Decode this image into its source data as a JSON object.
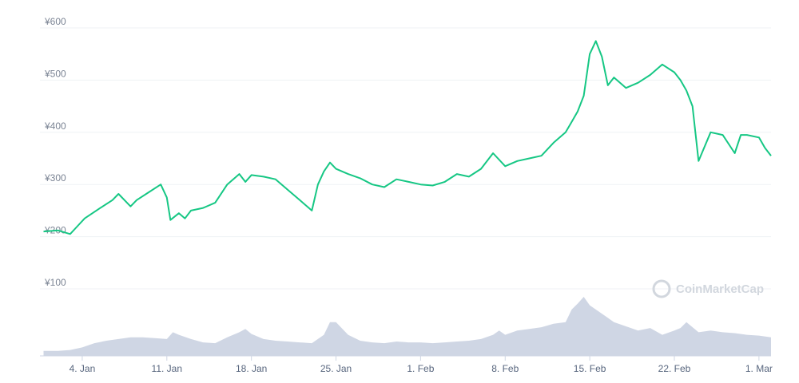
{
  "chart_data": {
    "type": "line",
    "title": "",
    "xlabel": "",
    "ylabel": "",
    "currency": "¥",
    "ylim": [
      0,
      600
    ],
    "y_ticks": [
      "¥600",
      "¥500",
      "¥400",
      "¥300",
      "¥200",
      "¥100"
    ],
    "y_tick_values": [
      600,
      500,
      400,
      300,
      200,
      100
    ],
    "x_ticks": [
      "4. Jan",
      "11. Jan",
      "18. Jan",
      "25. Jan",
      "1. Feb",
      "8. Feb",
      "15. Feb",
      "22. Feb",
      "1. Mar"
    ],
    "x_tick_days": [
      4,
      11,
      18,
      25,
      32,
      39,
      46,
      53,
      60
    ],
    "x_range_days": [
      0.5,
      61
    ],
    "grid": true,
    "watermark": "CoinMarketCap",
    "colors": {
      "price_line": "#16c784",
      "volume_area": "#cfd6e4",
      "grid": "#eff2f5"
    },
    "series": [
      {
        "kind": "price",
        "x_days": [
          0.8,
          2,
          3,
          3.6,
          4.2,
          5.5,
          6.5,
          7,
          8,
          8.5,
          9.5,
          10.5,
          11,
          11.3,
          12,
          12.5,
          13,
          14,
          15,
          16,
          17,
          17.5,
          18,
          19,
          20,
          21,
          22,
          23,
          23.5,
          24,
          24.5,
          25,
          26,
          27,
          28,
          29,
          30,
          31,
          32,
          33,
          34,
          35,
          36,
          37,
          38,
          39,
          40,
          41,
          42,
          43,
          44,
          44.5,
          45,
          45.5,
          46,
          46.5,
          47,
          47.5,
          48,
          49,
          50,
          51,
          52,
          53,
          53.5,
          54,
          54.5,
          55,
          56,
          57,
          58,
          58.5,
          59,
          60,
          60.5,
          61
        ],
        "values": [
          210,
          212,
          205,
          220,
          235,
          255,
          270,
          282,
          258,
          270,
          285,
          300,
          275,
          232,
          245,
          235,
          250,
          255,
          265,
          300,
          320,
          305,
          318,
          315,
          310,
          290,
          270,
          250,
          300,
          325,
          342,
          330,
          320,
          312,
          300,
          295,
          310,
          305,
          300,
          298,
          305,
          320,
          315,
          330,
          360,
          335,
          345,
          350,
          355,
          380,
          400,
          420,
          440,
          470,
          550,
          575,
          545,
          490,
          505,
          485,
          495,
          510,
          530,
          515,
          500,
          480,
          450,
          345,
          400,
          395,
          360,
          395,
          395,
          390,
          370,
          355
        ]
      },
      {
        "kind": "volume",
        "x_days": [
          0.8,
          2,
          3,
          4,
          5,
          6,
          7,
          8,
          9,
          10,
          11,
          11.5,
          12,
          13,
          14,
          15,
          16,
          17,
          17.5,
          18,
          19,
          20,
          21,
          22,
          23,
          24,
          24.5,
          25,
          26,
          27,
          28,
          29,
          30,
          31,
          32,
          33,
          34,
          35,
          36,
          37,
          38,
          38.5,
          39,
          40,
          41,
          42,
          43,
          44,
          44.5,
          45,
          45.5,
          46,
          47,
          48,
          49,
          50,
          51,
          52,
          53,
          53.5,
          54,
          55,
          56,
          57,
          58,
          59,
          60,
          61
        ],
        "values": [
          6,
          6,
          7,
          10,
          15,
          18,
          20,
          22,
          22,
          21,
          20,
          28,
          25,
          20,
          16,
          15,
          22,
          28,
          32,
          26,
          20,
          18,
          17,
          16,
          15,
          25,
          40,
          40,
          25,
          18,
          16,
          15,
          17,
          16,
          16,
          15,
          16,
          17,
          18,
          20,
          25,
          30,
          25,
          30,
          32,
          34,
          38,
          40,
          55,
          62,
          70,
          60,
          50,
          40,
          35,
          30,
          33,
          25,
          30,
          33,
          40,
          28,
          30,
          28,
          27,
          25,
          24,
          22
        ]
      }
    ]
  }
}
